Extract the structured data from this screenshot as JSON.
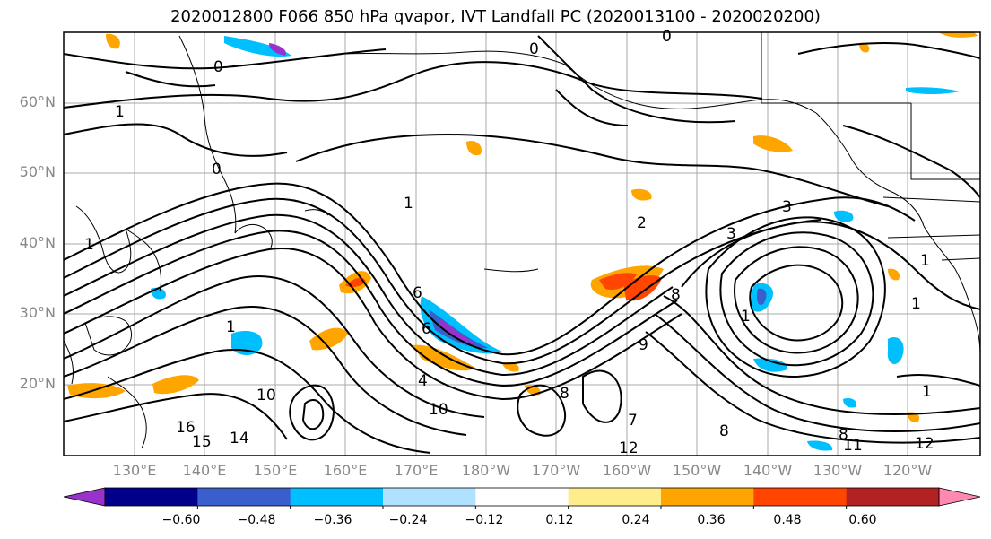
{
  "title": "2020012800 F066 850 hPa qvapor, IVT Landfall PC (2020013100 - 2020020200)",
  "map": {
    "lon_labels": [
      "130°E",
      "140°E",
      "150°E",
      "160°E",
      "170°E",
      "180°W",
      "170°W",
      "160°W",
      "150°W",
      "140°W",
      "130°W",
      "120°W"
    ],
    "lat_labels": [
      "60°N",
      "50°N",
      "40°N",
      "30°N",
      "20°N"
    ],
    "grid": true,
    "contour_labels": [
      "1",
      "0",
      "0",
      "1",
      "0",
      "2",
      "6",
      "6",
      "3",
      "3",
      "1",
      "1",
      "8",
      "9",
      "4",
      "8",
      "7",
      "8",
      "10",
      "14",
      "16",
      "15",
      "12",
      "11",
      "10",
      "12",
      "8",
      "1",
      "1",
      "0",
      "1",
      "1"
    ]
  },
  "colorbar": {
    "tick_labels": [
      "−0.60",
      "−0.48",
      "−0.36",
      "−0.24",
      "−0.12",
      "0.12",
      "0.24",
      "0.36",
      "0.48",
      "0.60"
    ],
    "colors": [
      "#9932CC",
      "#00008B",
      "#3A5FCD",
      "#00BFFF",
      "#B0E2FF",
      "#FFFFFF",
      "#FFEC8B",
      "#FFA500",
      "#FF4500",
      "#B22222",
      "#FF88B0"
    ]
  }
}
